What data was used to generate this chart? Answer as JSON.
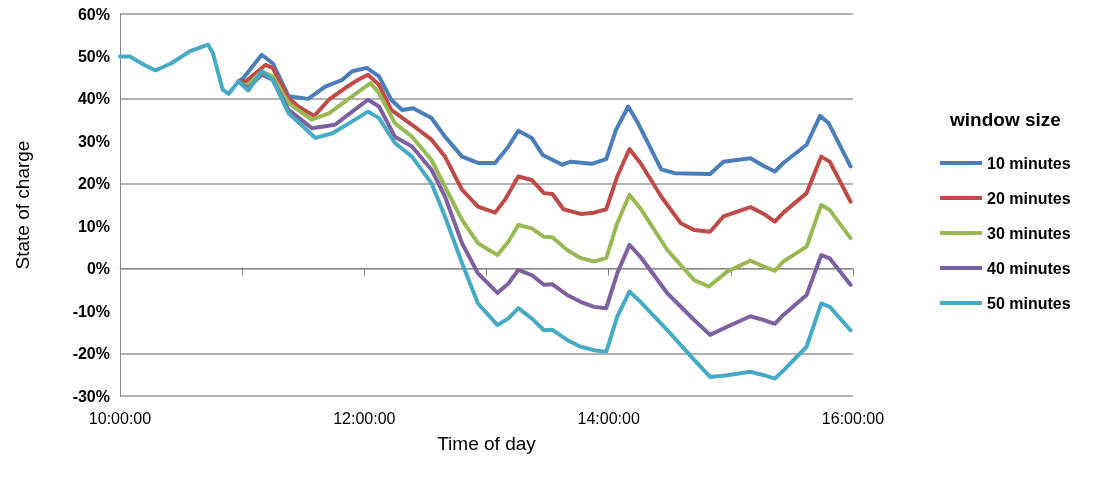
{
  "chart_data": {
    "type": "line",
    "xlabel": "Time of day",
    "ylabel": "State of charge",
    "legend_title": "window size",
    "legend": "right",
    "grid": "y",
    "marker": "none",
    "line_style": "solid",
    "xlim": [
      10,
      16
    ],
    "xticks": [
      {
        "value": 10,
        "label": "10:00:00"
      },
      {
        "value": 11,
        "label": null
      },
      {
        "value": 12,
        "label": "12:00:00"
      },
      {
        "value": 13,
        "label": null
      },
      {
        "value": 14,
        "label": "14:00:00"
      },
      {
        "value": 15,
        "label": null
      },
      {
        "value": 16,
        "label": "16:00:00"
      }
    ],
    "ylim": [
      -30,
      60
    ],
    "yticks": [
      {
        "value": -30,
        "label": "-30%"
      },
      {
        "value": -20,
        "label": "-20%"
      },
      {
        "value": -10,
        "label": "-10%"
      },
      {
        "value": 0,
        "label": "0%"
      },
      {
        "value": 10,
        "label": "10%"
      },
      {
        "value": 20,
        "label": "20%"
      },
      {
        "value": 30,
        "label": "30%"
      },
      {
        "value": 40,
        "label": "40%"
      },
      {
        "value": 50,
        "label": "50%"
      },
      {
        "value": 60,
        "label": "60%"
      }
    ],
    "series": [
      {
        "name": "10 minutes",
        "color": "#4a7ebb",
        "x": [
          10.97,
          11.01,
          11.16,
          11.25,
          11.38,
          11.54,
          11.68,
          11.82,
          11.9,
          12.02,
          12.12,
          12.22,
          12.31,
          12.4,
          12.55,
          12.66,
          12.8,
          12.93,
          13.07,
          13.18,
          13.26,
          13.37,
          13.46,
          13.62,
          13.69,
          13.86,
          13.98,
          14.06,
          14.16,
          14.24,
          14.43,
          14.54,
          14.83,
          14.94,
          15.16,
          15.27,
          15.36,
          15.43,
          15.62,
          15.73,
          15.8,
          15.98
        ],
        "values": [
          44.1,
          44.9,
          50.4,
          48.4,
          40.6,
          40,
          42.9,
          44.5,
          46.5,
          47.3,
          45.3,
          39.8,
          37.4,
          37.8,
          35.5,
          31.1,
          26.4,
          24.9,
          24.9,
          28.8,
          32.5,
          30.8,
          26.8,
          24.5,
          25.2,
          24.7,
          25.8,
          32.7,
          38.2,
          34.3,
          23.4,
          22.5,
          22.3,
          25.2,
          26,
          24.2,
          22.9,
          24.9,
          29.2,
          36,
          34.3,
          24.1
        ]
      },
      {
        "name": "20 minutes",
        "color": "#be4b48",
        "x": [
          10.97,
          11.03,
          11.19,
          11.25,
          11.38,
          11.46,
          11.59,
          11.71,
          11.84,
          11.95,
          12.03,
          12.12,
          12.22,
          12.39,
          12.55,
          12.66,
          12.8,
          12.93,
          13.07,
          13.15,
          13.26,
          13.37,
          13.47,
          13.54,
          13.63,
          13.77,
          13.88,
          13.98,
          14.07,
          14.17,
          14.26,
          14.43,
          14.59,
          14.7,
          14.83,
          14.94,
          15.16,
          15.27,
          15.36,
          15.43,
          15.62,
          15.74,
          15.81,
          15.98
        ],
        "values": [
          44.1,
          44.1,
          48,
          47.3,
          40.2,
          38.2,
          36,
          39.8,
          42.5,
          44.5,
          45.7,
          43.3,
          37.4,
          33.9,
          30.4,
          26.4,
          18.6,
          14.6,
          13.2,
          16.2,
          21.7,
          20.9,
          17.8,
          17.6,
          14,
          12.9,
          13.2,
          14,
          21.7,
          28.2,
          24.9,
          17,
          10.7,
          9.1,
          8.7,
          12.3,
          14.5,
          12.9,
          11.1,
          13.2,
          17.8,
          26.4,
          25.2,
          15.8
        ]
      },
      {
        "name": "30 minutes",
        "color": "#98b954",
        "x": [
          10.97,
          11.04,
          11.16,
          11.25,
          11.38,
          11.57,
          11.71,
          11.9,
          12.05,
          12.12,
          12.25,
          12.39,
          12.55,
          12.66,
          12.8,
          12.93,
          13.09,
          13.18,
          13.26,
          13.37,
          13.47,
          13.54,
          13.66,
          13.77,
          13.88,
          13.98,
          14.07,
          14.17,
          14.26,
          14.48,
          14.7,
          14.82,
          14.97,
          15.16,
          15.27,
          15.36,
          15.43,
          15.62,
          15.74,
          15.81,
          15.98
        ],
        "values": [
          44.1,
          43,
          46.5,
          45.3,
          39,
          35.1,
          36.6,
          40.6,
          43.7,
          41.4,
          34.3,
          31.1,
          25.6,
          19.3,
          11.5,
          6,
          3.2,
          6.4,
          10.3,
          9.5,
          7.5,
          7.4,
          4.4,
          2.5,
          1.7,
          2.5,
          10.7,
          17.4,
          14.2,
          4.4,
          -2.7,
          -4.2,
          -0.7,
          1.9,
          0.5,
          -0.5,
          1.7,
          5.2,
          15,
          13.8,
          7.2
        ]
      },
      {
        "name": "40 minutes",
        "color": "#7d60a0",
        "x": [
          10.97,
          11.05,
          11.16,
          11.25,
          11.38,
          11.57,
          11.76,
          11.9,
          12.03,
          12.12,
          12.25,
          12.39,
          12.55,
          12.66,
          12.8,
          12.93,
          13.09,
          13.18,
          13.26,
          13.37,
          13.47,
          13.54,
          13.66,
          13.77,
          13.88,
          13.98,
          14.07,
          14.17,
          14.26,
          14.48,
          14.7,
          14.83,
          14.97,
          15.16,
          15.27,
          15.36,
          15.43,
          15.62,
          15.74,
          15.81,
          15.98
        ],
        "values": [
          44.1,
          42.5,
          45.7,
          44.5,
          37.4,
          33.1,
          33.9,
          37,
          39.8,
          38.2,
          31.1,
          28.8,
          23.3,
          17,
          6,
          -1.1,
          -5.7,
          -3.5,
          -0.3,
          -1.5,
          -3.8,
          -3.7,
          -6.2,
          -7.8,
          -9,
          -9.3,
          -1.1,
          5.6,
          2.8,
          -5.8,
          -12.1,
          -15.6,
          -13.7,
          -11.2,
          -12.1,
          -13,
          -10.9,
          -6.2,
          3.2,
          2.4,
          -3.8
        ]
      },
      {
        "name": "50 minutes",
        "color": "#46aac5",
        "x": [
          10,
          10.08,
          10.2,
          10.29,
          10.42,
          10.57,
          10.72,
          10.76,
          10.84,
          10.89,
          10.97,
          11.05,
          11.16,
          11.25,
          11.38,
          11.6,
          11.74,
          11.9,
          12.03,
          12.12,
          12.25,
          12.39,
          12.55,
          12.66,
          12.8,
          12.93,
          13.09,
          13.18,
          13.26,
          13.37,
          13.47,
          13.54,
          13.66,
          13.77,
          13.88,
          13.98,
          14.07,
          14.17,
          14.26,
          14.48,
          14.7,
          14.83,
          14.97,
          15.16,
          15.27,
          15.36,
          15.43,
          15.62,
          15.74,
          15.81,
          15.98
        ],
        "values": [
          50,
          50,
          48,
          46.7,
          48.4,
          51.2,
          52.8,
          50.8,
          42.2,
          41.2,
          44.1,
          42,
          46.5,
          44.5,
          36.6,
          30.8,
          31.9,
          34.7,
          37,
          35.5,
          29.6,
          26.4,
          20.1,
          12.3,
          1.3,
          -8.2,
          -13.3,
          -11.7,
          -9.3,
          -11.7,
          -14.5,
          -14.4,
          -16.8,
          -18.4,
          -19.2,
          -19.6,
          -11.3,
          -5.4,
          -7.8,
          -14.5,
          -21.5,
          -25.5,
          -25.1,
          -24.3,
          -25.1,
          -25.9,
          -24,
          -18.4,
          -8.2,
          -9,
          -14.5
        ]
      }
    ]
  }
}
